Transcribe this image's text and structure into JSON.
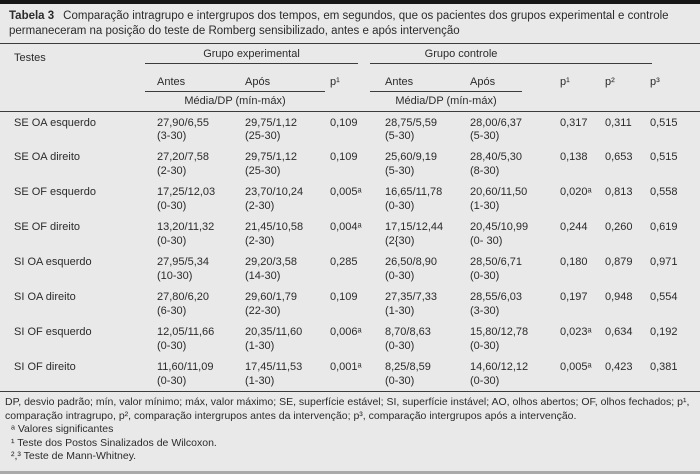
{
  "colors": {
    "background": "#e9e9e9",
    "text": "#2b2b2b",
    "rule": "#3c3c3c",
    "top_bar": "#161616"
  },
  "table": {
    "title_label": "Tabela 3",
    "title_text": "Comparação intragrupo e intergrupos dos tempos, em segundos, que os pacientes dos grupos experimental e controle permaneceram na posição do teste de Romberg sensibilizado, antes e após intervenção",
    "header": {
      "tests": "Testes",
      "group_experimental": "Grupo experimental",
      "group_control": "Grupo controle",
      "antes": "Antes",
      "apos": "Após",
      "p1": "p¹",
      "p2": "p²",
      "p3": "p³",
      "media_dp": "Média/DP (mín-máx)"
    },
    "rows": [
      {
        "test": "SE OA esquerdo",
        "exp_antes": "27,90/6,55",
        "exp_antes_range": "(3-30)",
        "exp_apos": "29,75/1,12",
        "exp_apos_range": "(25-30)",
        "p_intra": "0,109",
        "ctrl_antes": "28,75/5,59",
        "ctrl_antes_range": "(5-30)",
        "ctrl_apos": "28,00/6,37",
        "ctrl_apos_range": "(5-30)",
        "p1": "0,317",
        "p2": "0,311",
        "p3": "0,515"
      },
      {
        "test": "SE OA direito",
        "exp_antes": "27,20/7,58",
        "exp_antes_range": "(2-30)",
        "exp_apos": "29,75/1,12",
        "exp_apos_range": "(25-30)",
        "p_intra": "0,109",
        "ctrl_antes": "25,60/9,19",
        "ctrl_antes_range": "(5-30)",
        "ctrl_apos": "28,40/5,30",
        "ctrl_apos_range": "(8-30)",
        "p1": "0,138",
        "p2": "0,653",
        "p3": "0,515"
      },
      {
        "test": "SE OF esquerdo",
        "exp_antes": "17,25/12,03",
        "exp_antes_range": "(0-30)",
        "exp_apos": "23,70/10,24",
        "exp_apos_range": "(2-30)",
        "p_intra": "0,005ᵃ",
        "ctrl_antes": "16,65/11,78",
        "ctrl_antes_range": "(0-30)",
        "ctrl_apos": "20,60/11,50",
        "ctrl_apos_range": "(1-30)",
        "p1": "0,020ᵃ",
        "p2": "0,813",
        "p3": "0,558"
      },
      {
        "test": "SE OF direito",
        "exp_antes": "13,20/11,32",
        "exp_antes_range": "(0-30)",
        "exp_apos": "21,45/10,58",
        "exp_apos_range": "(2-30)",
        "p_intra": "0,004ᵃ",
        "ctrl_antes": "17,15/12,44",
        "ctrl_antes_range": "(2{30)",
        "ctrl_apos": "20,45/10,99",
        "ctrl_apos_range": "(0- 30)",
        "p1": "0,244",
        "p2": "0,260",
        "p3": "0,619"
      },
      {
        "test": "SI OA esquerdo",
        "exp_antes": "27,95/5,34",
        "exp_antes_range": "(10-30)",
        "exp_apos": "29,20/3,58",
        "exp_apos_range": "(14-30)",
        "p_intra": "0,285",
        "ctrl_antes": "26,50/8,90",
        "ctrl_antes_range": "(0-30)",
        "ctrl_apos": "28,50/6,71",
        "ctrl_apos_range": "(0-30)",
        "p1": "0,180",
        "p2": "0,879",
        "p3": "0,971"
      },
      {
        "test": "SI OA direito",
        "exp_antes": "27,80/6,20",
        "exp_antes_range": "(6-30)",
        "exp_apos": "29,60/1,79",
        "exp_apos_range": "(22-30)",
        "p_intra": "0,109",
        "ctrl_antes": "27,35/7,33",
        "ctrl_antes_range": "(1-30)",
        "ctrl_apos": "28,55/6,03",
        "ctrl_apos_range": "(3-30)",
        "p1": "0,197",
        "p2": "0,948",
        "p3": "0,554"
      },
      {
        "test": "SI OF esquerdo",
        "exp_antes": "12,05/11,66",
        "exp_antes_range": "(0-30)",
        "exp_apos": "20,35/11,60",
        "exp_apos_range": "(1-30)",
        "p_intra": "0,006ᵃ",
        "ctrl_antes": "8,70/8,63",
        "ctrl_antes_range": "(0-30)",
        "ctrl_apos": "15,80/12,78",
        "ctrl_apos_range": "(0-30)",
        "p1": "0,023ᵃ",
        "p2": "0,634",
        "p3": "0,192"
      },
      {
        "test": "SI OF direito",
        "exp_antes": "11,60/11,09",
        "exp_antes_range": "(0-30)",
        "exp_apos": "17,45/11,53",
        "exp_apos_range": "(1-30)",
        "p_intra": "0,001ᵃ",
        "ctrl_antes": "8,25/8,59",
        "ctrl_antes_range": "(0-30)",
        "ctrl_apos": "14,60/12,12",
        "ctrl_apos_range": "(0-30)",
        "p1": "0,005ᵃ",
        "p2": "0,423",
        "p3": "0,381"
      }
    ],
    "footnotes": [
      "DP, desvio padrão; mín, valor mínimo; máx, valor máximo; SE, superfície estável; SI, superfície instável; AO, olhos abertos; OF, olhos fechados; p¹, comparação intragrupo, p², comparação intergrupos antes da intervenção; p³, comparação intergrupos após a intervenção.",
      "ᵃ Valores significantes",
      "¹ Teste dos Postos Sinalizados de Wilcoxon.",
      "²,³ Teste de Mann-Whitney."
    ]
  }
}
